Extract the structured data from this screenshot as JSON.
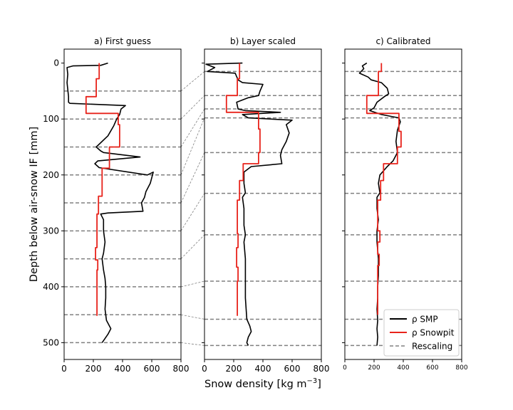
{
  "figure": {
    "ylabel": "Depth below air-snow IF [mm]",
    "xlabel_main": "Snow density [kg m",
    "xlabel_sup": "−3",
    "xlabel_tail": "]"
  },
  "legend": {
    "placement": "lower-right",
    "entries": [
      {
        "label": "ρ SMP",
        "color": "#000000",
        "style": "solid"
      },
      {
        "label": "ρ Snowpit",
        "color": "#e8231b",
        "style": "solid"
      },
      {
        "label": "Rescaling",
        "color": "#808080",
        "style": "dashed"
      }
    ]
  },
  "chart_data": [
    {
      "type": "line",
      "title": "a) First guess",
      "xlim": [
        0,
        800
      ],
      "ylim": [
        530,
        -25
      ],
      "y_inverted": true,
      "xticks": [
        0,
        200,
        400,
        600,
        800
      ],
      "yticks": [
        0,
        100,
        200,
        300,
        400,
        500
      ],
      "rescaling_depths": [
        50,
        100,
        150,
        200,
        250,
        300,
        350,
        400,
        450,
        500
      ],
      "series": [
        {
          "name": "ρ SMP",
          "points": [
            [
              300,
              0
            ],
            [
              250,
              4
            ],
            [
              60,
              5
            ],
            [
              20,
              8
            ],
            [
              25,
              20
            ],
            [
              20,
              35
            ],
            [
              30,
              60
            ],
            [
              30,
              70
            ],
            [
              40,
              72
            ],
            [
              420,
              76
            ],
            [
              390,
              82
            ],
            [
              380,
              92
            ],
            [
              360,
              100
            ],
            [
              340,
              112
            ],
            [
              300,
              130
            ],
            [
              220,
              150
            ],
            [
              250,
              157
            ],
            [
              270,
              160
            ],
            [
              520,
              168
            ],
            [
              230,
              175
            ],
            [
              210,
              180
            ],
            [
              240,
              187
            ],
            [
              570,
              200
            ],
            [
              610,
              195
            ],
            [
              590,
              215
            ],
            [
              560,
              230
            ],
            [
              550,
              240
            ],
            [
              530,
              250
            ],
            [
              540,
              265
            ],
            [
              300,
              268
            ],
            [
              250,
              270
            ],
            [
              270,
              280
            ],
            [
              270,
              300
            ],
            [
              280,
              320
            ],
            [
              270,
              340
            ],
            [
              260,
              350
            ],
            [
              270,
              370
            ],
            [
              280,
              385
            ],
            [
              285,
              400
            ],
            [
              285,
              420
            ],
            [
              280,
              440
            ],
            [
              290,
              460
            ],
            [
              320,
              475
            ],
            [
              300,
              485
            ],
            [
              260,
              500
            ]
          ]
        },
        {
          "name": "ρ Snowpit",
          "points": [
            [
              240,
              0
            ],
            [
              240,
              28
            ],
            [
              220,
              28
            ],
            [
              220,
              60
            ],
            [
              150,
              60
            ],
            [
              150,
              90
            ],
            [
              370,
              90
            ],
            [
              370,
              110
            ],
            [
              380,
              110
            ],
            [
              380,
              150
            ],
            [
              310,
              150
            ],
            [
              310,
              188
            ],
            [
              260,
              188
            ],
            [
              260,
              238
            ],
            [
              235,
              238
            ],
            [
              235,
              270
            ],
            [
              225,
              270
            ],
            [
              225,
              330
            ],
            [
              215,
              330
            ],
            [
              215,
              352
            ],
            [
              230,
              352
            ],
            [
              230,
              370
            ],
            [
              225,
              370
            ],
            [
              225,
              452
            ]
          ]
        }
      ]
    },
    {
      "type": "line",
      "title": "b) Layer scaled",
      "xlim": [
        0,
        800
      ],
      "ylim": [
        530,
        -25
      ],
      "y_inverted": true,
      "xticks": [
        0,
        200,
        400,
        600,
        800
      ],
      "yticks": [
        0,
        100,
        200,
        300,
        400,
        500
      ],
      "rescaling_depths": [
        15,
        58,
        82,
        98,
        160,
        233,
        307,
        390,
        458,
        505
      ],
      "series": [
        {
          "name": "ρ SMP",
          "points": [
            [
              260,
              0
            ],
            [
              10,
              2
            ],
            [
              70,
              8
            ],
            [
              20,
              15
            ],
            [
              210,
              18
            ],
            [
              230,
              30
            ],
            [
              260,
              35
            ],
            [
              400,
              38
            ],
            [
              380,
              50
            ],
            [
              370,
              58
            ],
            [
              300,
              62
            ],
            [
              220,
              70
            ],
            [
              230,
              82
            ],
            [
              280,
              85
            ],
            [
              520,
              88
            ],
            [
              260,
              92
            ],
            [
              300,
              98
            ],
            [
              600,
              102
            ],
            [
              560,
              110
            ],
            [
              580,
              125
            ],
            [
              560,
              140
            ],
            [
              530,
              155
            ],
            [
              520,
              165
            ],
            [
              530,
              180
            ],
            [
              320,
              185
            ],
            [
              270,
              195
            ],
            [
              270,
              215
            ],
            [
              280,
              232
            ],
            [
              260,
              240
            ],
            [
              270,
              260
            ],
            [
              270,
              290
            ],
            [
              280,
              307
            ],
            [
              270,
              320
            ],
            [
              280,
              350
            ],
            [
              280,
              390
            ],
            [
              280,
              420
            ],
            [
              290,
              458
            ],
            [
              310,
              470
            ],
            [
              320,
              480
            ],
            [
              300,
              490
            ],
            [
              290,
              500
            ],
            [
              300,
              505
            ]
          ]
        },
        {
          "name": "ρ Snowpit",
          "points": [
            [
              240,
              0
            ],
            [
              240,
              28
            ],
            [
              225,
              28
            ],
            [
              225,
              58
            ],
            [
              150,
              58
            ],
            [
              150,
              88
            ],
            [
              370,
              88
            ],
            [
              370,
              118
            ],
            [
              380,
              118
            ],
            [
              380,
              160
            ],
            [
              370,
              160
            ],
            [
              370,
              180
            ],
            [
              265,
              180
            ],
            [
              265,
              210
            ],
            [
              240,
              210
            ],
            [
              240,
              245
            ],
            [
              225,
              245
            ],
            [
              225,
              305
            ],
            [
              230,
              305
            ],
            [
              230,
              330
            ],
            [
              220,
              330
            ],
            [
              220,
              365
            ],
            [
              230,
              365
            ],
            [
              230,
              390
            ],
            [
              225,
              390
            ],
            [
              225,
              452
            ]
          ]
        }
      ]
    },
    {
      "type": "line",
      "title": "c) Calibrated",
      "xlim": [
        0,
        800
      ],
      "ylim": [
        530,
        -25
      ],
      "y_inverted": true,
      "xticks": [
        0,
        200,
        400,
        600,
        800
      ],
      "yticks": [
        0,
        100,
        200,
        300,
        400,
        500
      ],
      "rescaling_depths": [
        15,
        58,
        82,
        98,
        160,
        233,
        307,
        390,
        458,
        505
      ],
      "series": [
        {
          "name": "ρ SMP",
          "points": [
            [
              150,
              0
            ],
            [
              120,
              5
            ],
            [
              130,
              10
            ],
            [
              100,
              18
            ],
            [
              160,
              25
            ],
            [
              180,
              30
            ],
            [
              250,
              35
            ],
            [
              290,
              45
            ],
            [
              300,
              55
            ],
            [
              270,
              60
            ],
            [
              220,
              70
            ],
            [
              200,
              80
            ],
            [
              170,
              85
            ],
            [
              250,
              92
            ],
            [
              370,
              98
            ],
            [
              380,
              105
            ],
            [
              360,
              120
            ],
            [
              350,
              140
            ],
            [
              360,
              160
            ],
            [
              330,
              175
            ],
            [
              290,
              185
            ],
            [
              240,
              200
            ],
            [
              230,
              215
            ],
            [
              240,
              232
            ],
            [
              220,
              240
            ],
            [
              220,
              260
            ],
            [
              230,
              280
            ],
            [
              220,
              300
            ],
            [
              220,
              320
            ],
            [
              230,
              350
            ],
            [
              230,
              380
            ],
            [
              225,
              400
            ],
            [
              225,
              420
            ],
            [
              220,
              440
            ],
            [
              225,
              460
            ],
            [
              220,
              475
            ],
            [
              225,
              490
            ],
            [
              220,
              505
            ]
          ]
        },
        {
          "name": "ρ Snowpit",
          "points": [
            [
              250,
              0
            ],
            [
              250,
              15
            ],
            [
              230,
              15
            ],
            [
              230,
              58
            ],
            [
              150,
              58
            ],
            [
              150,
              90
            ],
            [
              370,
              90
            ],
            [
              370,
              122
            ],
            [
              385,
              122
            ],
            [
              385,
              150
            ],
            [
              360,
              150
            ],
            [
              360,
              180
            ],
            [
              265,
              180
            ],
            [
              265,
              210
            ],
            [
              245,
              210
            ],
            [
              245,
              245
            ],
            [
              225,
              245
            ],
            [
              225,
              300
            ],
            [
              240,
              300
            ],
            [
              240,
              320
            ],
            [
              225,
              320
            ],
            [
              225,
              342
            ],
            [
              235,
              342
            ],
            [
              235,
              362
            ],
            [
              225,
              362
            ],
            [
              225,
              450
            ]
          ]
        }
      ]
    }
  ]
}
